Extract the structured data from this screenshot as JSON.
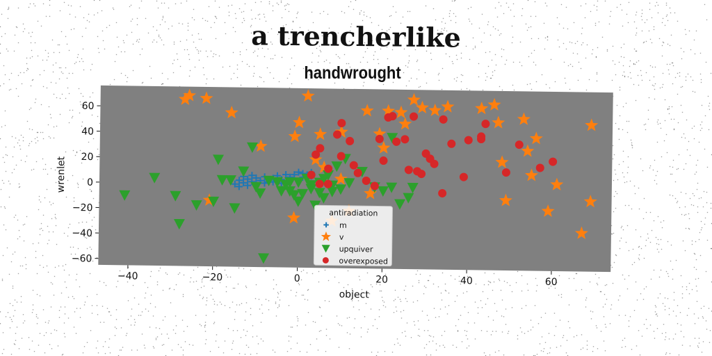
{
  "chart_data": {
    "type": "scatter",
    "title": "a trencherlike",
    "subtitle": "handwrought",
    "xlabel": "object",
    "ylabel": "wrenlet",
    "xlim": [
      -47,
      74
    ],
    "ylim": [
      -65,
      76
    ],
    "xticks": [
      -40,
      -20,
      0,
      20,
      40,
      60
    ],
    "yticks": [
      -60,
      -40,
      -20,
      0,
      20,
      40,
      60
    ],
    "grid": false,
    "background": "#808080",
    "legend": {
      "title": "antiradiation",
      "placement": "lower-center"
    },
    "series": [
      {
        "name": "m",
        "marker": "plus",
        "color": "#1f77b4",
        "points": [
          [
            -15,
            0
          ],
          [
            -14,
            3
          ],
          [
            -13,
            1
          ],
          [
            -12,
            4
          ],
          [
            -11,
            2
          ],
          [
            -10,
            5
          ],
          [
            -9,
            3
          ],
          [
            -8,
            6
          ],
          [
            -7,
            2
          ],
          [
            -6,
            5
          ],
          [
            -5,
            7
          ],
          [
            -4,
            4
          ],
          [
            -3,
            8
          ],
          [
            -2,
            6
          ],
          [
            -1,
            8
          ],
          [
            0,
            10
          ],
          [
            1,
            9
          ],
          [
            2,
            8
          ],
          [
            3,
            10
          ],
          [
            -14,
            -2
          ],
          [
            -12,
            -1
          ],
          [
            -10,
            0
          ],
          [
            -8,
            1
          ],
          [
            -6,
            2
          ],
          [
            -4,
            1
          ],
          [
            -2,
            3
          ],
          [
            1,
            6
          ],
          [
            3,
            7
          ],
          [
            -13,
            6
          ],
          [
            -11,
            7
          ]
        ]
      },
      {
        "name": "v",
        "marker": "star",
        "color": "#ff7f0e",
        "points": [
          [
            -27,
            66
          ],
          [
            -26,
            69
          ],
          [
            -22,
            67
          ],
          [
            -16,
            56
          ],
          [
            2,
            70
          ],
          [
            0,
            49
          ],
          [
            -1,
            38
          ],
          [
            -9,
            30
          ],
          [
            5,
            40
          ],
          [
            10,
            42
          ],
          [
            16,
            59
          ],
          [
            17,
            -6
          ],
          [
            19,
            41
          ],
          [
            20,
            30
          ],
          [
            21,
            59
          ],
          [
            24,
            58
          ],
          [
            25,
            49
          ],
          [
            27,
            68
          ],
          [
            29,
            62
          ],
          [
            32,
            60
          ],
          [
            35,
            63
          ],
          [
            43,
            62
          ],
          [
            46,
            65
          ],
          [
            47,
            51
          ],
          [
            48,
            20
          ],
          [
            49,
            -10
          ],
          [
            53,
            54
          ],
          [
            54,
            29
          ],
          [
            55,
            10
          ],
          [
            56,
            39
          ],
          [
            59,
            -18
          ],
          [
            61,
            3
          ],
          [
            67,
            -35
          ],
          [
            69,
            -10
          ],
          [
            69,
            50
          ],
          [
            12,
            -20
          ],
          [
            8,
            -28
          ],
          [
            -1,
            -26
          ],
          [
            4,
            20
          ],
          [
            10,
            5
          ],
          [
            -21,
            -13
          ],
          [
            6,
            14
          ]
        ]
      },
      {
        "name": "upquiver",
        "marker": "triangle-down",
        "color": "#2ca02c",
        "points": [
          [
            -41,
            -10
          ],
          [
            -34,
            4
          ],
          [
            -29,
            -10
          ],
          [
            -28,
            -32
          ],
          [
            -24,
            -17
          ],
          [
            -20,
            -14
          ],
          [
            -19,
            19
          ],
          [
            -18,
            3
          ],
          [
            -16,
            3
          ],
          [
            -15,
            -19
          ],
          [
            -13,
            10
          ],
          [
            -11,
            29
          ],
          [
            -10,
            -2
          ],
          [
            -9,
            -7
          ],
          [
            -8,
            -58
          ],
          [
            -7,
            3
          ],
          [
            -5,
            2
          ],
          [
            -4,
            -5
          ],
          [
            -3,
            0
          ],
          [
            -2,
            -5
          ],
          [
            -1,
            -8
          ],
          [
            0,
            -13
          ],
          [
            0,
            2
          ],
          [
            1,
            -7
          ],
          [
            2,
            5
          ],
          [
            3,
            0
          ],
          [
            4,
            -16
          ],
          [
            5,
            2
          ],
          [
            6,
            -10
          ],
          [
            7,
            8
          ],
          [
            8,
            0
          ],
          [
            9,
            15
          ],
          [
            10,
            -3
          ],
          [
            11,
            21
          ],
          [
            12,
            2
          ],
          [
            15,
            11
          ],
          [
            18,
            -1
          ],
          [
            20,
            -4
          ],
          [
            22,
            -1
          ],
          [
            22,
            38
          ],
          [
            24,
            -14
          ],
          [
            26,
            -9
          ],
          [
            27,
            -1
          ],
          [
            -2,
            2
          ],
          [
            5,
            -6
          ],
          [
            3,
            -3
          ],
          [
            6,
            5
          ],
          [
            8,
            -5
          ]
        ]
      },
      {
        "name": "overexposed",
        "marker": "circle",
        "color": "#d62728",
        "points": [
          [
            3,
            8
          ],
          [
            4,
            24
          ],
          [
            5,
            29
          ],
          [
            7,
            13
          ],
          [
            7,
            1
          ],
          [
            9,
            40
          ],
          [
            10,
            49
          ],
          [
            10,
            23
          ],
          [
            12,
            35
          ],
          [
            13,
            16
          ],
          [
            14,
            10
          ],
          [
            16,
            4
          ],
          [
            19,
            37
          ],
          [
            20,
            20
          ],
          [
            22,
            55
          ],
          [
            23,
            35
          ],
          [
            25,
            37
          ],
          [
            26,
            13
          ],
          [
            28,
            12
          ],
          [
            29,
            10
          ],
          [
            30,
            26
          ],
          [
            31,
            22
          ],
          [
            32,
            18
          ],
          [
            34,
            -5
          ],
          [
            34,
            53
          ],
          [
            36,
            34
          ],
          [
            39,
            8
          ],
          [
            40,
            37
          ],
          [
            43,
            38
          ],
          [
            43,
            40
          ],
          [
            44,
            50
          ],
          [
            49,
            12
          ],
          [
            52,
            34
          ],
          [
            57,
            16
          ],
          [
            60,
            21
          ],
          [
            21,
            54
          ],
          [
            27,
            55
          ],
          [
            18,
            0
          ],
          [
            5,
            1
          ]
        ]
      }
    ]
  }
}
